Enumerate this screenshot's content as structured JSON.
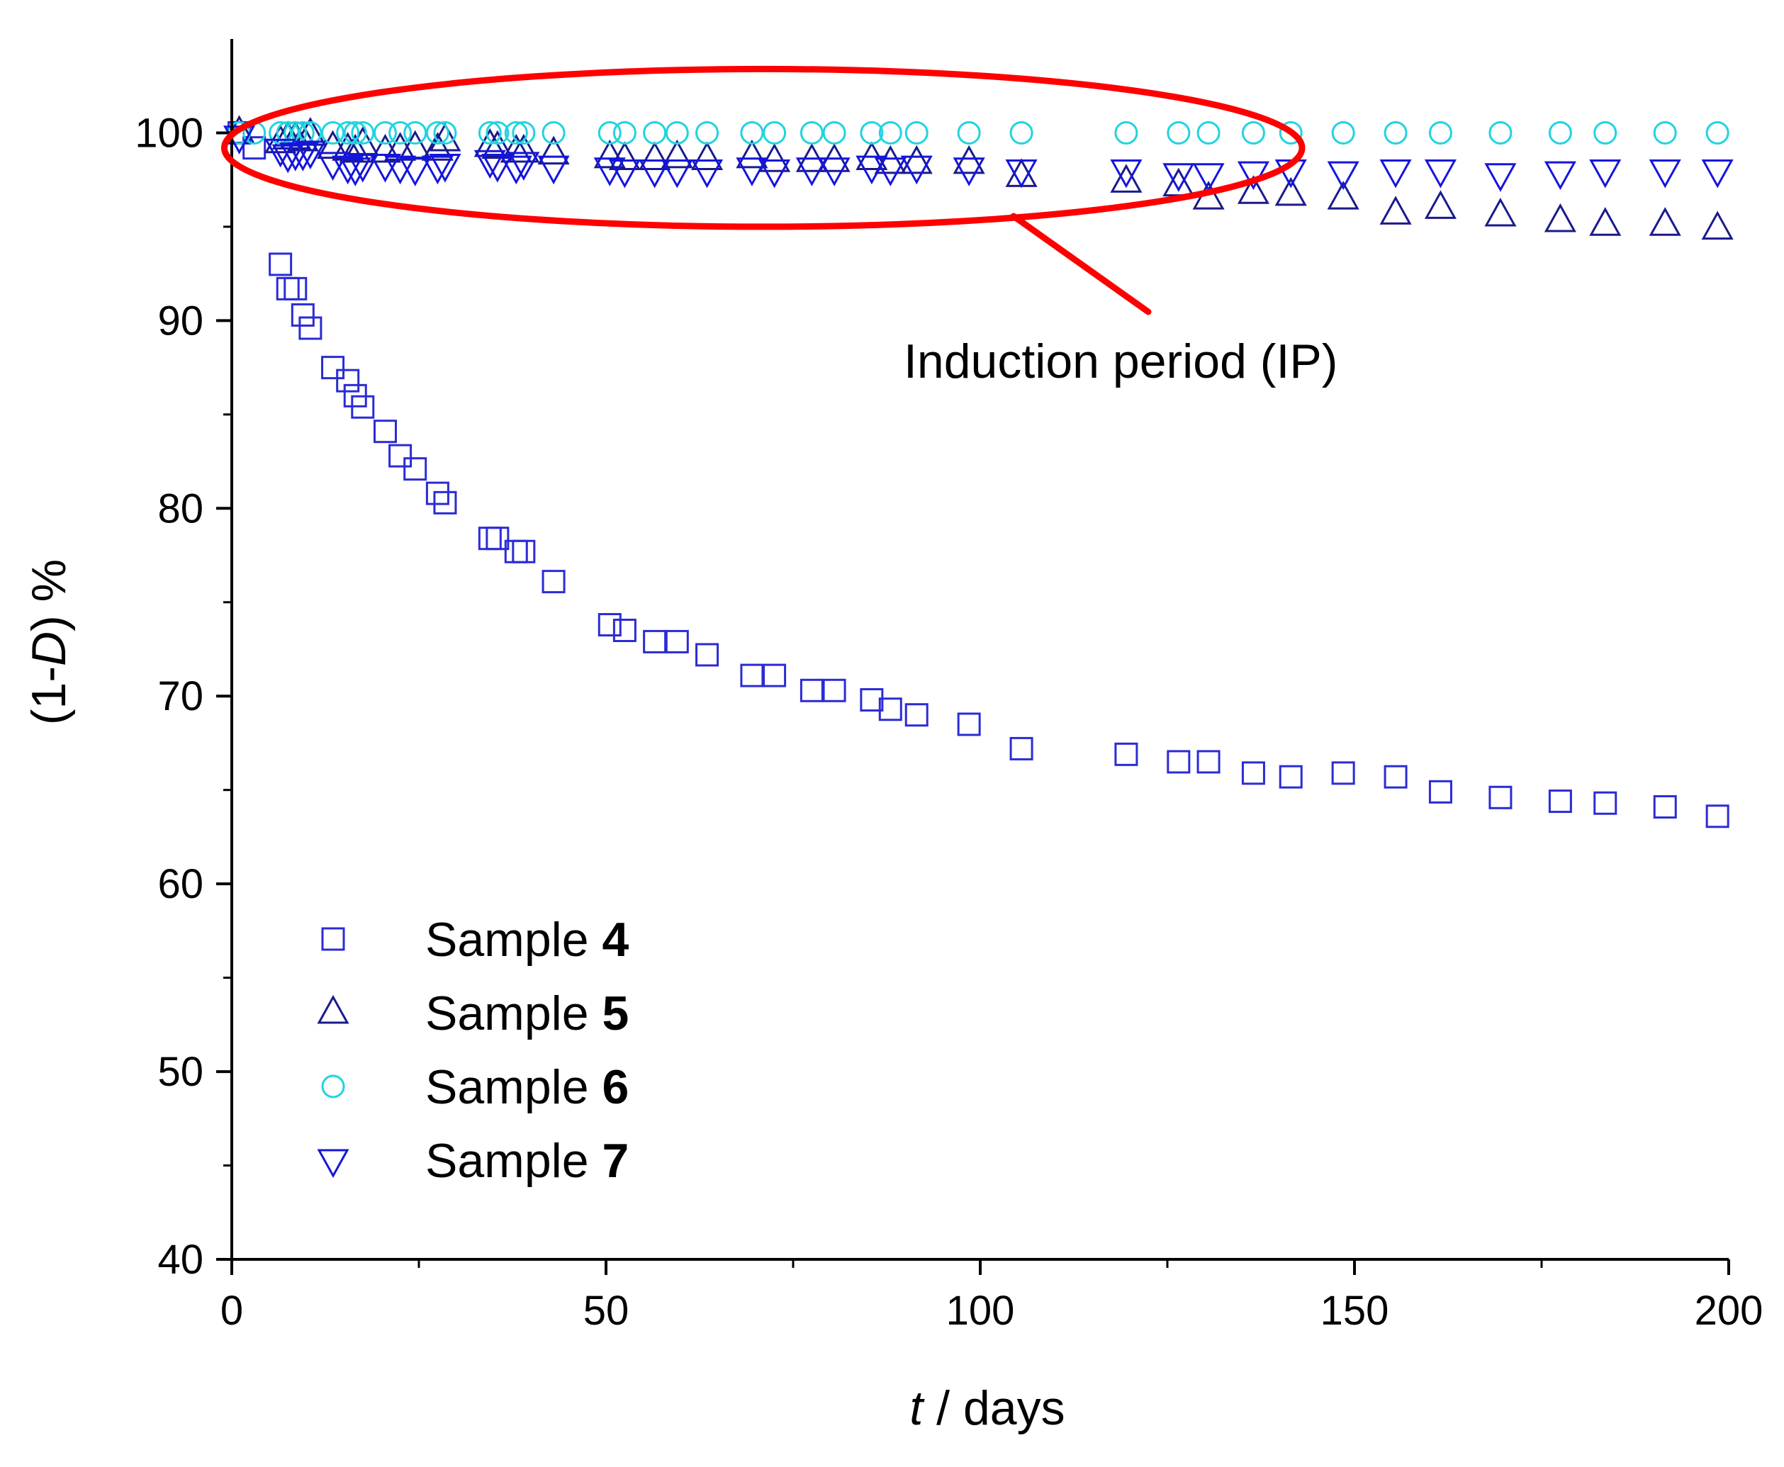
{
  "chart_data": {
    "type": "scatter",
    "title": "",
    "xlabel_var": "t",
    "xlabel_rest": " / days",
    "ylabel_pre": "(1-",
    "ylabel_var": "D",
    "ylabel_post": ") %",
    "xlim": [
      0,
      200
    ],
    "ylim": [
      40,
      105
    ],
    "xticks": [
      0,
      50,
      100,
      150,
      200
    ],
    "yticks": [
      40,
      50,
      60,
      70,
      80,
      90,
      100
    ],
    "grid": false,
    "legend_position": "bottom-left",
    "annotation": {
      "text": "Induction period (IP)",
      "ellipse_center": [
        71,
        99.2
      ],
      "ellipse_radii": [
        72,
        4.2
      ],
      "color": "#ff0000"
    },
    "series": [
      {
        "name": "Sample ",
        "label_num": "4",
        "marker": "square",
        "color": "#2b2bd6",
        "x": [
          1,
          3,
          6.5,
          7.5,
          8.5,
          9.5,
          10.5,
          13.5,
          15.5,
          16.5,
          17.5,
          20.5,
          22.5,
          24.5,
          27.5,
          28.5,
          34.5,
          35.5,
          38,
          39,
          43,
          50.5,
          52.5,
          56.5,
          59.5,
          63.5,
          69.5,
          72.5,
          77.5,
          80.5,
          85.5,
          88,
          91.5,
          98.5,
          105.5,
          119.5,
          126.5,
          130.5,
          136.5,
          141.5,
          148.5,
          155.5,
          161.5,
          169.5,
          177.5,
          183.5,
          191.5,
          198.5
        ],
        "y": [
          100,
          99.2,
          93,
          91.7,
          91.7,
          90.3,
          89.6,
          87.5,
          86.8,
          86,
          85.4,
          84.1,
          82.8,
          82.1,
          80.8,
          80.3,
          78.4,
          78.4,
          77.7,
          77.7,
          76.1,
          73.8,
          73.5,
          72.9,
          72.9,
          72.2,
          71.1,
          71.1,
          70.3,
          70.3,
          69.8,
          69.3,
          69,
          68.5,
          67.2,
          66.9,
          66.5,
          66.5,
          65.9,
          65.7,
          65.9,
          65.7,
          64.9,
          64.6,
          64.4,
          64.3,
          64.1,
          63.6
        ]
      },
      {
        "name": "Sample ",
        "label_num": "5",
        "marker": "triangle-up",
        "color": "#1a1a8c",
        "x": [
          1,
          6.5,
          7.5,
          8.5,
          9.5,
          10.5,
          13.5,
          15.5,
          16.5,
          17.5,
          20.5,
          22.5,
          24.5,
          27.5,
          28.5,
          34.5,
          35.5,
          38,
          39,
          43,
          50.5,
          52.5,
          56.5,
          59.5,
          63.5,
          69.5,
          72.5,
          77.5,
          80.5,
          85.5,
          88,
          91.5,
          98.5,
          105.5,
          119.5,
          126.5,
          130.5,
          136.5,
          141.5,
          148.5,
          155.5,
          161.5,
          169.5,
          177.5,
          183.5,
          191.5,
          198.5
        ],
        "y": [
          100,
          99.5,
          99.7,
          99.7,
          99.6,
          99.9,
          99.2,
          99.1,
          99,
          99.4,
          99,
          99.1,
          99.2,
          99.1,
          99.6,
          99.3,
          99.2,
          99,
          99,
          98.9,
          98.7,
          98.6,
          98.6,
          98.7,
          98.6,
          98.7,
          98.5,
          98.5,
          98.5,
          98.6,
          98.4,
          98.4,
          98.4,
          97.7,
          97.4,
          97.2,
          96.5,
          96.8,
          96.7,
          96.5,
          95.7,
          96,
          95.6,
          95.3,
          95.1,
          95.1,
          94.9
        ]
      },
      {
        "name": "Sample ",
        "label_num": "6",
        "marker": "circle",
        "color": "#22d3e0",
        "x": [
          1,
          3,
          6.5,
          7.5,
          8.5,
          9.5,
          10.5,
          13.5,
          15.5,
          16.5,
          17.5,
          20.5,
          22.5,
          24.5,
          27.5,
          28.5,
          34.5,
          35.5,
          38,
          39,
          43,
          50.5,
          52.5,
          56.5,
          59.5,
          63.5,
          69.5,
          72.5,
          77.5,
          80.5,
          85.5,
          88,
          91.5,
          98.5,
          105.5,
          119.5,
          126.5,
          130.5,
          136.5,
          141.5,
          148.5,
          155.5,
          161.5,
          169.5,
          177.5,
          183.5,
          191.5,
          198.5
        ],
        "y": [
          100,
          100,
          100,
          100,
          100,
          100,
          100,
          100,
          100,
          100,
          100,
          100,
          100,
          100,
          100,
          100,
          100,
          100,
          100,
          100,
          100,
          100,
          100,
          100,
          100,
          100,
          100,
          100,
          100,
          100,
          100,
          100,
          100,
          100,
          100,
          100,
          100,
          100,
          100,
          100,
          100,
          100,
          100,
          100,
          100,
          100,
          100,
          100
        ]
      },
      {
        "name": "Sample ",
        "label_num": "7",
        "marker": "triangle-down",
        "color": "#1515dd",
        "x": [
          1,
          6.5,
          7.5,
          8.5,
          9.5,
          10.5,
          13.5,
          15.5,
          16.5,
          17.5,
          20.5,
          22.5,
          24.5,
          27.5,
          28.5,
          34.5,
          35.5,
          38,
          39,
          43,
          50.5,
          52.5,
          56.5,
          59.5,
          63.5,
          69.5,
          72.5,
          77.5,
          80.5,
          85.5,
          88,
          91.5,
          98.5,
          105.5,
          119.5,
          126.5,
          130.5,
          136.5,
          141.5,
          148.5,
          155.5,
          161.5,
          169.5,
          177.5,
          183.5,
          191.5,
          198.5
        ],
        "y": [
          99.8,
          99.1,
          98.8,
          98.9,
          98.9,
          99,
          98.4,
          98.2,
          98.1,
          98.3,
          98.3,
          98.2,
          98.1,
          98.2,
          98.3,
          98.5,
          98.3,
          98.2,
          98.4,
          98.2,
          98.1,
          98,
          98,
          98,
          98,
          98.1,
          98,
          98.1,
          98.1,
          98.2,
          98.1,
          98.2,
          98.1,
          98,
          98,
          97.8,
          97.8,
          97.9,
          98,
          97.9,
          98,
          98,
          97.8,
          97.9,
          98,
          98,
          98
        ]
      }
    ]
  }
}
